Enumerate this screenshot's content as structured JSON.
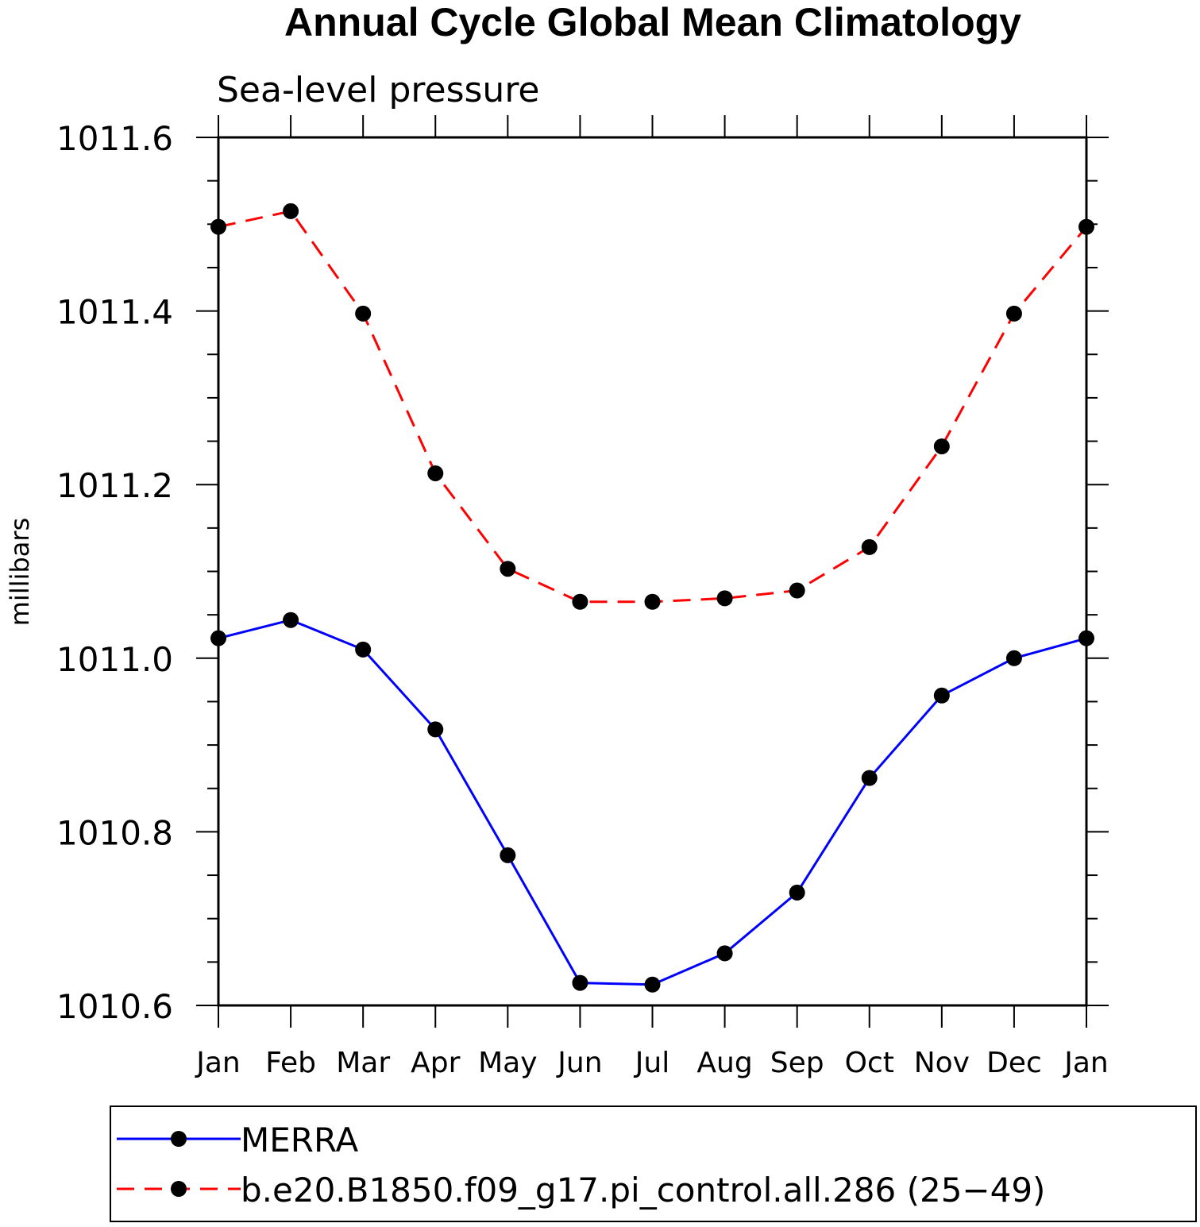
{
  "chart_data": {
    "type": "line",
    "title": "Annual Cycle Global Mean Climatology",
    "subtitle": "Sea-level pressure",
    "ylabel": "millibars",
    "xlabel": "",
    "ylim": [
      1010.6,
      1011.6
    ],
    "y_ticks": [
      "1010.6",
      "1010.8",
      "1011.0",
      "1011.2",
      "1011.4",
      "1011.6"
    ],
    "y_tick_values": [
      1010.6,
      1010.8,
      1011.0,
      1011.2,
      1011.4,
      1011.6
    ],
    "categories": [
      "Jan",
      "Feb",
      "Mar",
      "Apr",
      "May",
      "Jun",
      "Jul",
      "Aug",
      "Sep",
      "Oct",
      "Nov",
      "Dec",
      "Jan"
    ],
    "legend_position": "bottom",
    "grid": false,
    "series": [
      {
        "name": "MERRA",
        "color": "#0000ff",
        "line_style": "solid",
        "marker": "filled-circle",
        "values": [
          1011.023,
          1011.044,
          1011.01,
          1010.918,
          1010.773,
          1010.626,
          1010.624,
          1010.66,
          1010.73,
          1010.862,
          1010.957,
          1011.0,
          1011.023
        ]
      },
      {
        "name": "b.e20.B1850.f09_g17.pi_control.all.286 (25−49)",
        "color": "#ff0000",
        "line_style": "dashed",
        "marker": "filled-circle",
        "values": [
          1011.497,
          1011.515,
          1011.397,
          1011.213,
          1011.103,
          1011.065,
          1011.065,
          1011.069,
          1011.078,
          1011.128,
          1011.244,
          1011.397,
          1011.497
        ]
      }
    ]
  }
}
